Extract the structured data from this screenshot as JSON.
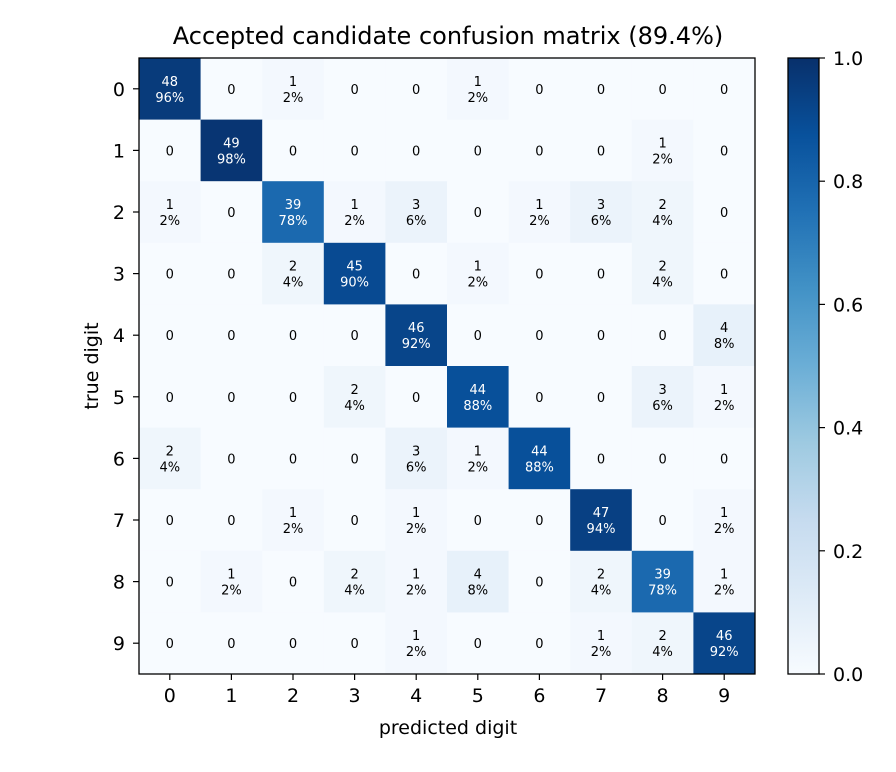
{
  "chart_data": {
    "type": "heatmap",
    "title": "Accepted candidate confusion matrix (89.4%)",
    "xlabel": "predicted digit",
    "ylabel": "true digit",
    "x_categories": [
      "0",
      "1",
      "2",
      "3",
      "4",
      "5",
      "6",
      "7",
      "8",
      "9"
    ],
    "y_categories": [
      "0",
      "1",
      "2",
      "3",
      "4",
      "5",
      "6",
      "7",
      "8",
      "9"
    ],
    "counts": [
      [
        48,
        0,
        1,
        0,
        0,
        1,
        0,
        0,
        0,
        0
      ],
      [
        0,
        49,
        0,
        0,
        0,
        0,
        0,
        0,
        1,
        0
      ],
      [
        1,
        0,
        39,
        1,
        3,
        0,
        1,
        3,
        2,
        0
      ],
      [
        0,
        0,
        2,
        45,
        0,
        1,
        0,
        0,
        2,
        0
      ],
      [
        0,
        0,
        0,
        0,
        46,
        0,
        0,
        0,
        0,
        4
      ],
      [
        0,
        0,
        0,
        2,
        0,
        44,
        0,
        0,
        3,
        1
      ],
      [
        2,
        0,
        0,
        0,
        3,
        1,
        44,
        0,
        0,
        0
      ],
      [
        0,
        0,
        1,
        0,
        1,
        0,
        0,
        47,
        0,
        1
      ],
      [
        0,
        1,
        0,
        2,
        1,
        4,
        0,
        2,
        39,
        1
      ],
      [
        0,
        0,
        0,
        0,
        1,
        0,
        0,
        1,
        2,
        46
      ]
    ],
    "percents": [
      [
        "96%",
        "",
        "2%",
        "",
        "",
        "2%",
        "",
        "",
        "",
        ""
      ],
      [
        "",
        "98%",
        "",
        "",
        "",
        "",
        "",
        "",
        "2%",
        ""
      ],
      [
        "2%",
        "",
        "78%",
        "2%",
        "6%",
        "",
        "2%",
        "6%",
        "4%",
        ""
      ],
      [
        "",
        "",
        "4%",
        "90%",
        "",
        "2%",
        "",
        "",
        "4%",
        ""
      ],
      [
        "",
        "",
        "",
        "",
        "92%",
        "",
        "",
        "",
        "",
        "8%"
      ],
      [
        "",
        "",
        "",
        "4%",
        "",
        "88%",
        "",
        "",
        "6%",
        "2%"
      ],
      [
        "4%",
        "",
        "",
        "",
        "6%",
        "2%",
        "88%",
        "",
        "",
        ""
      ],
      [
        "",
        "",
        "2%",
        "",
        "2%",
        "",
        "",
        "94%",
        "",
        "2%"
      ],
      [
        "",
        "2%",
        "",
        "4%",
        "2%",
        "8%",
        "",
        "4%",
        "78%",
        "2%"
      ],
      [
        "",
        "",
        "",
        "",
        "2%",
        "",
        "",
        "2%",
        "4%",
        "92%"
      ]
    ],
    "colorbar": {
      "min": 0.0,
      "max": 1.0,
      "ticks": [
        "0.0",
        "0.2",
        "0.4",
        "0.6",
        "0.8",
        "1.0"
      ],
      "colormap": "Blues",
      "low_color": "#f7fbff",
      "high_color": "#08306b"
    }
  }
}
